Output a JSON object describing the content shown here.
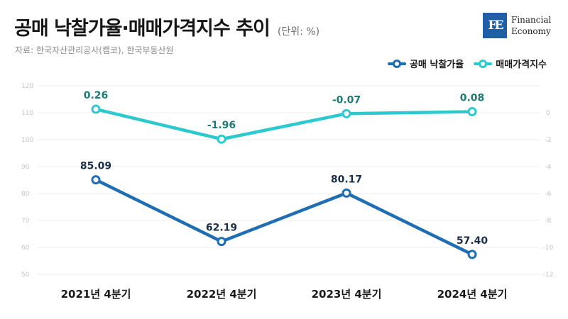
{
  "header": {
    "title": "공매 낙찰가율·매매가격지수 추이",
    "unit": "(단위: %)",
    "source": "자료: 한국자산관리공사(캠코), 한국부동산원"
  },
  "logo": {
    "mark": "FE",
    "line1": "Financial",
    "line2": "Economy"
  },
  "colors": {
    "dark_blue": "#1f6db3",
    "cyan": "#2cc9cf",
    "grid": "#ececec",
    "axis_text": "#c4c4c4"
  },
  "chart_data": {
    "type": "line",
    "categories": [
      "2021년 4분기",
      "2022년 4분기",
      "2023년 4분기",
      "2024년 4분기"
    ],
    "series": [
      {
        "name": "공매 낙찰가율",
        "values": [
          85.09,
          62.19,
          80.17,
          57.4
        ],
        "labels": [
          "85.09",
          "62.19",
          "80.17",
          "57.40"
        ],
        "axis": "left",
        "color": "#1f6db3"
      },
      {
        "name": "매매가격지수",
        "values": [
          0.26,
          -1.96,
          -0.07,
          0.08
        ],
        "labels": [
          "0.26",
          "-1.96",
          "-0.07",
          "0.08"
        ],
        "axis": "right",
        "color": "#2cc9cf"
      }
    ],
    "y_left": {
      "ticks": [
        "120",
        "110",
        "100",
        "90",
        "80",
        "70",
        "60",
        "50"
      ],
      "ylim": [
        50,
        120
      ]
    },
    "y_right": {
      "ticks": [
        "0",
        "-2",
        "-4",
        "-6",
        "-8",
        "-10",
        "-12"
      ],
      "ylim": [
        -12,
        2
      ]
    },
    "legend": "top-right",
    "grid": true
  }
}
